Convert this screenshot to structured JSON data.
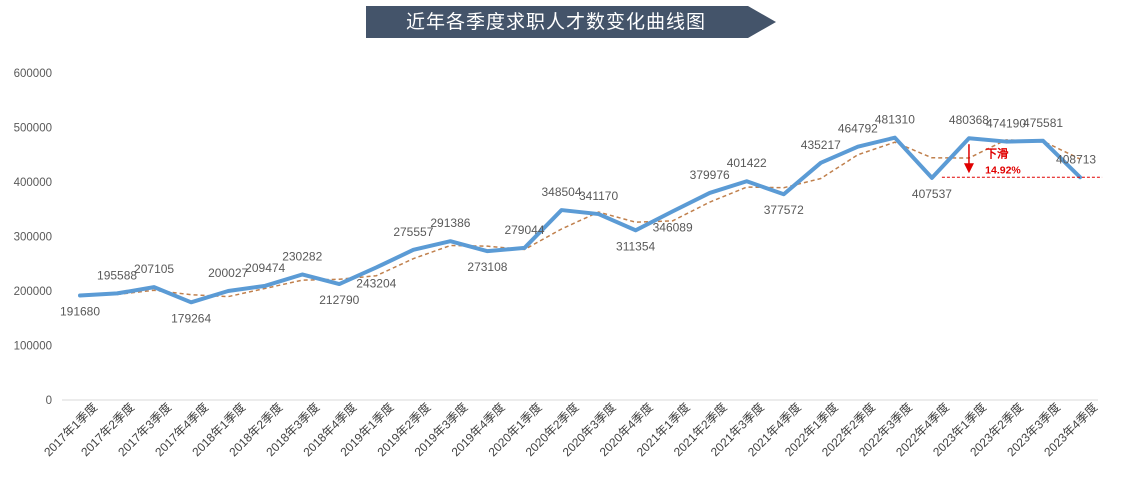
{
  "chart_data": {
    "type": "line",
    "title": "近年各季度求职人才数变化曲线图",
    "categories": [
      "2017年1季度",
      "2017年2季度",
      "2017年3季度",
      "2017年4季度",
      "2018年1季度",
      "2018年2季度",
      "2018年3季度",
      "2018年4季度",
      "2019年1季度",
      "2019年2季度",
      "2019年3季度",
      "2019年4季度",
      "2020年1季度",
      "2020年2季度",
      "2020年3季度",
      "2020年4季度",
      "2021年1季度",
      "2021年2季度",
      "2021年3季度",
      "2021年4季度",
      "2022年1季度",
      "2022年2季度",
      "2022年3季度",
      "2022年4季度",
      "2023年1季度",
      "2023年2季度",
      "2023年3季度",
      "2023年4季度"
    ],
    "series": [
      {
        "values": [
          191680,
          195588,
          207105,
          179264,
          200027,
          209474,
          230282,
          212790,
          243204,
          275557,
          291386,
          273108,
          279044,
          348504,
          341170,
          311354,
          346089,
          379976,
          401422,
          377572,
          435217,
          464792,
          481310,
          407537,
          480368,
          474190,
          475581,
          408713
        ],
        "color": "#5b9bd5",
        "data_labels": [
          "191680",
          "195588",
          "207105",
          "179264",
          "200027",
          "209474",
          "230282",
          "212790",
          "243204",
          "275557",
          "291386",
          "273108",
          "279044",
          "348504",
          "341170",
          "311354",
          "346089",
          "379976",
          "401422",
          "377572",
          "435217",
          "464792",
          "481310",
          "407537",
          "480368",
          "474190",
          "475581",
          "408713"
        ]
      }
    ],
    "trendline": {
      "style": "dashed",
      "color": "#c0804d",
      "kind": "moving-average"
    },
    "ylim": [
      0,
      600000
    ],
    "yticks": [
      "0",
      "100000",
      "200000",
      "300000",
      "400000",
      "500000",
      "600000"
    ],
    "grid": false,
    "annotation": {
      "text": "下滑",
      "value": "14.92%",
      "color": "#e00000",
      "from_category": "2023年1季度",
      "to_category": "2023年4季度"
    },
    "xlabel": "",
    "ylabel": ""
  }
}
